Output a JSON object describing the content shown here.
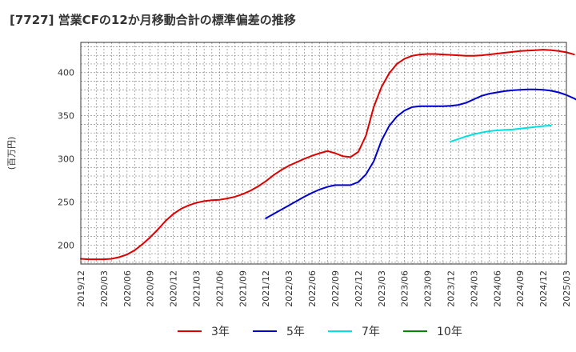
{
  "title": "[7727]  営業CFの12か月移動合計の標準偏差の推移",
  "chart_data": {
    "type": "line",
    "ylabel": "(百万円)",
    "ylim": [
      178,
      435
    ],
    "yticks": [
      200,
      250,
      300,
      350,
      400
    ],
    "x_labels": [
      "2019/12",
      "2020/03",
      "2020/06",
      "2020/09",
      "2020/12",
      "2021/03",
      "2021/06",
      "2021/09",
      "2021/12",
      "2022/03",
      "2022/06",
      "2022/09",
      "2022/12",
      "2023/03",
      "2023/06",
      "2023/09",
      "2023/12",
      "2024/03",
      "2024/06",
      "2024/09",
      "2024/12",
      "2025/03"
    ],
    "grid": true,
    "legend_position": "bottom",
    "series": [
      {
        "name": "3年",
        "color": "#dd0000",
        "start_index": 0,
        "values": [
          184,
          183.5,
          183.5,
          183.5,
          184,
          186,
          189,
          194,
          201,
          209,
          218,
          228,
          236,
          242,
          246,
          249,
          251,
          252,
          252.5,
          254,
          256,
          259,
          263,
          268,
          274,
          281,
          287,
          292,
          296,
          300,
          303.5,
          306.5,
          309,
          306.5,
          303,
          302,
          308,
          327,
          360,
          383,
          399,
          410,
          416,
          419.5,
          421,
          421.5,
          421.5,
          421,
          420.5,
          420,
          419.5,
          419.5,
          420,
          421,
          422,
          423,
          424,
          425,
          425.5,
          426,
          426.5,
          426,
          425,
          423.5,
          421
        ]
      },
      {
        "name": "5年",
        "color": "#0000cc",
        "start_index": 24,
        "values": [
          231,
          236,
          241,
          246,
          251,
          256,
          260.5,
          264.5,
          267.5,
          269.5,
          269.5,
          269.5,
          273,
          282,
          297,
          321,
          338,
          349,
          356,
          360,
          361,
          361,
          361,
          361,
          361.5,
          362.5,
          365,
          369,
          373,
          375.5,
          377,
          378.5,
          379.5,
          380,
          380.5,
          380.5,
          380,
          379,
          377,
          374,
          370,
          365
        ]
      },
      {
        "name": "7年",
        "color": "#00e0e0",
        "start_index": 48,
        "values": [
          320,
          323,
          326,
          328.5,
          330.5,
          332,
          333,
          333.5,
          334,
          335,
          336,
          337,
          338,
          338.5
        ]
      },
      {
        "name": "10年",
        "color": "#008800",
        "start_index": 0,
        "values": []
      }
    ]
  }
}
